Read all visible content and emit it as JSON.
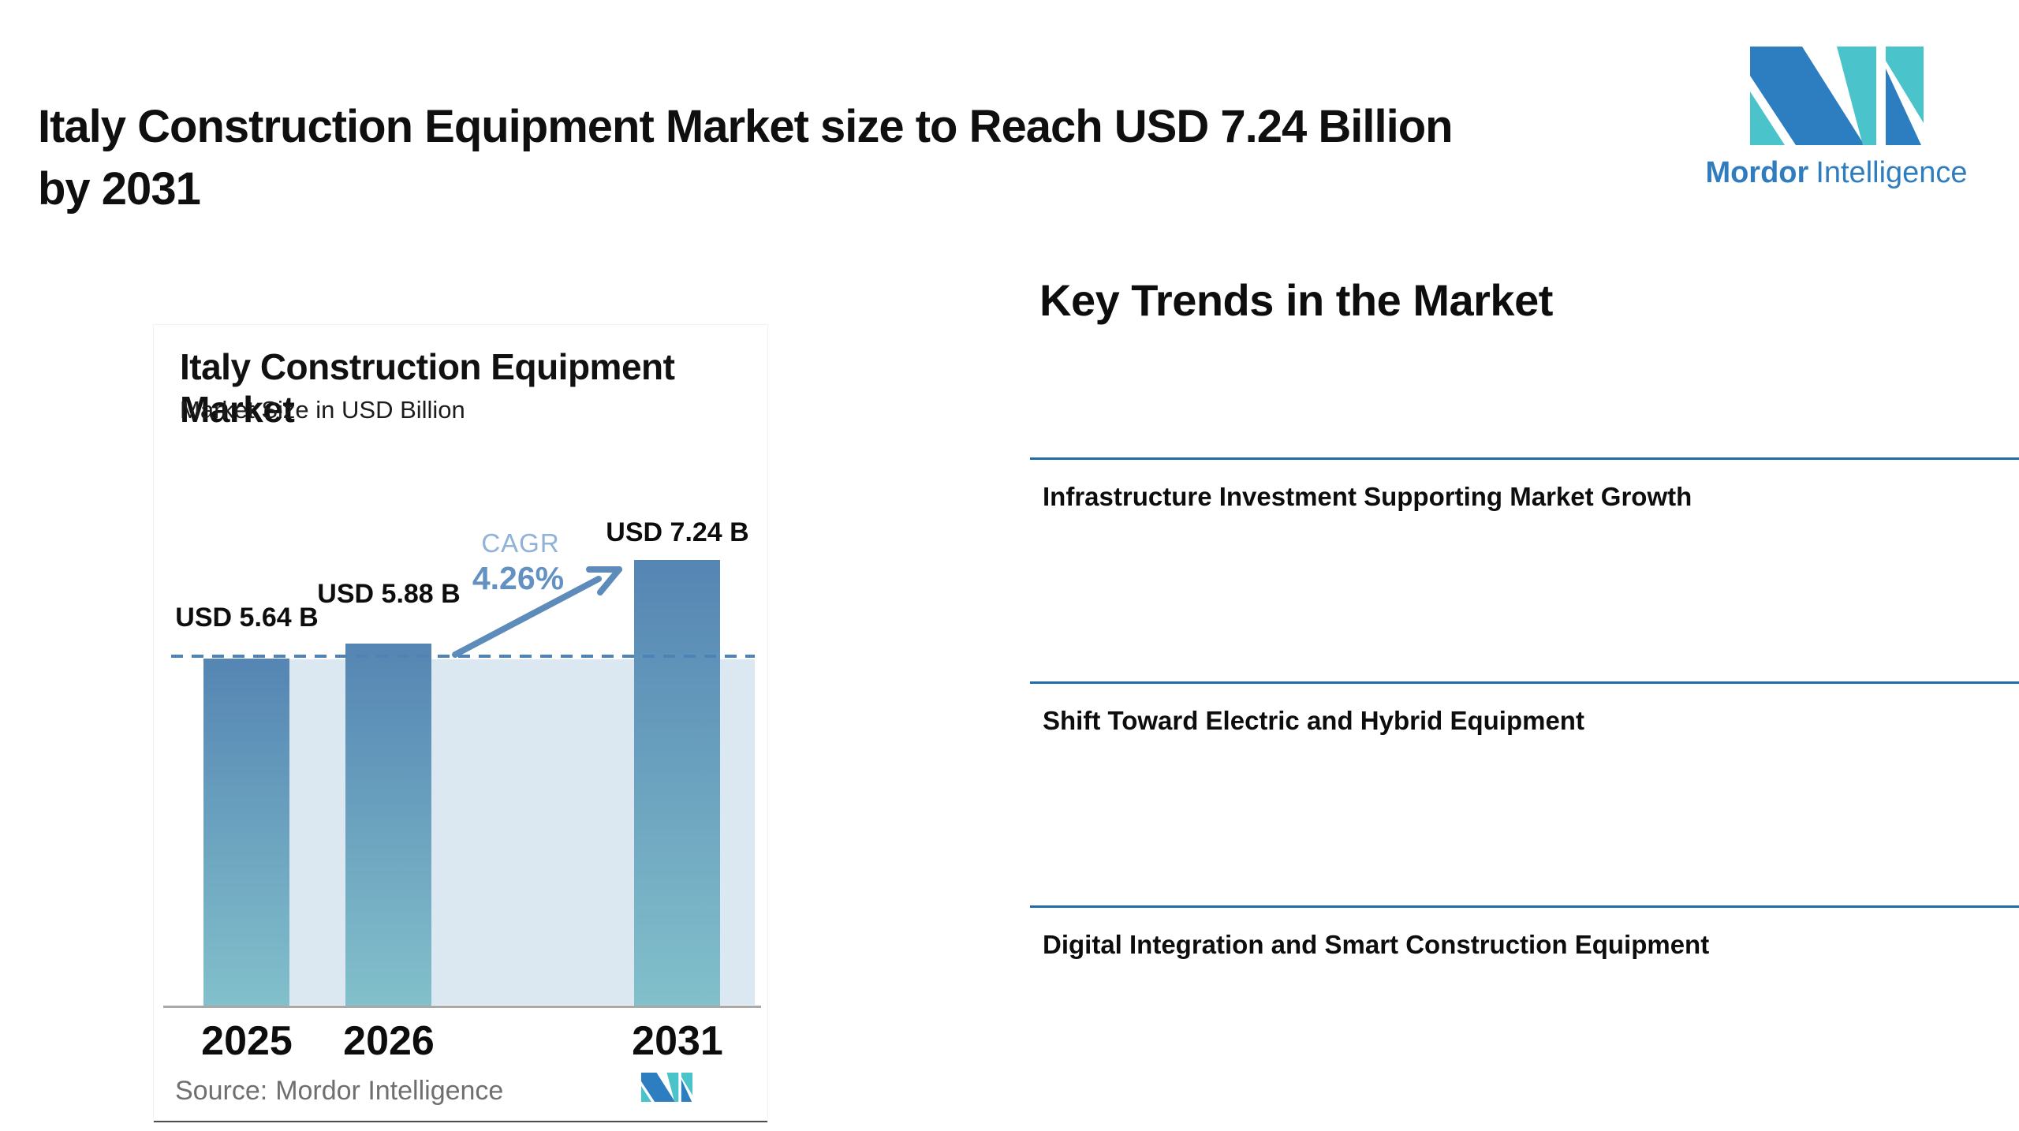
{
  "page": {
    "title_line1": "Italy Construction Equipment Market size to Reach USD 7.24 Billion",
    "title_line2": "by 2031"
  },
  "brand": {
    "name_bold": "Mordor",
    "name_light": "Intelligence",
    "blue": "#2d7dc1",
    "teal": "#4ac3cb"
  },
  "chart_card": {
    "title": "Italy Construction Equipment Market",
    "subtitle": "Market Size in USD Billion",
    "cagr_label": "CAGR",
    "cagr_value": "4.26%",
    "source_label": "Source:",
    "source_value": "Mordor Intelligence"
  },
  "chart_data": {
    "type": "bar",
    "title": "Italy Construction Equipment Market",
    "subtitle": "Market Size in USD Billion",
    "categories": [
      "2025",
      "2026",
      "2031"
    ],
    "values": [
      5.64,
      5.88,
      7.24
    ],
    "value_labels": [
      "USD 5.64 B",
      "USD 5.88 B",
      "USD 7.24 B"
    ],
    "unit": "USD Billion",
    "cagr_percent": 4.26,
    "baseline_reference_value": 5.64,
    "ylim": [
      0,
      7.9
    ],
    "grid": false,
    "legend": false,
    "bar_gradient_top": "#5585b3",
    "bar_gradient_bottom": "#82c0cb",
    "band_color": "#dbe7f1",
    "dashed_line_color": "#4e84b5",
    "arrow_color": "#5d8cba",
    "axis_color": "#a9a9a9"
  },
  "trends": {
    "heading": "Key Trends in the Market",
    "divider_color": "#1e6cab",
    "items": [
      {
        "title": "Infrastructure Investment Supporting Market Growth"
      },
      {
        "title": "Shift Toward Electric and Hybrid Equipment"
      },
      {
        "title": "Digital Integration and Smart Construction Equipment"
      }
    ]
  }
}
